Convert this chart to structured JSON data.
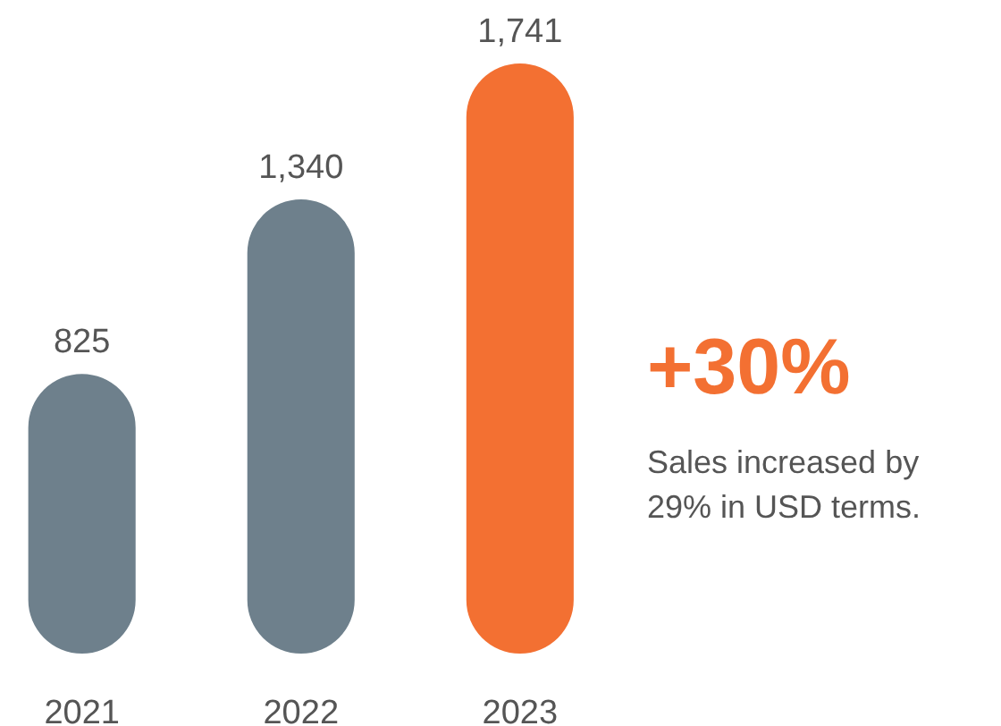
{
  "chart_data": {
    "type": "bar",
    "categories": [
      "2021",
      "2022",
      "2023"
    ],
    "values": [
      825,
      1340,
      1741
    ],
    "colors": [
      "#6e808c",
      "#6e808c",
      "#f37032"
    ],
    "value_labels": [
      "825",
      "1,340",
      "1,741"
    ],
    "annotations": [
      "+30%",
      "Sales increased by 29% in USD terms."
    ]
  }
}
